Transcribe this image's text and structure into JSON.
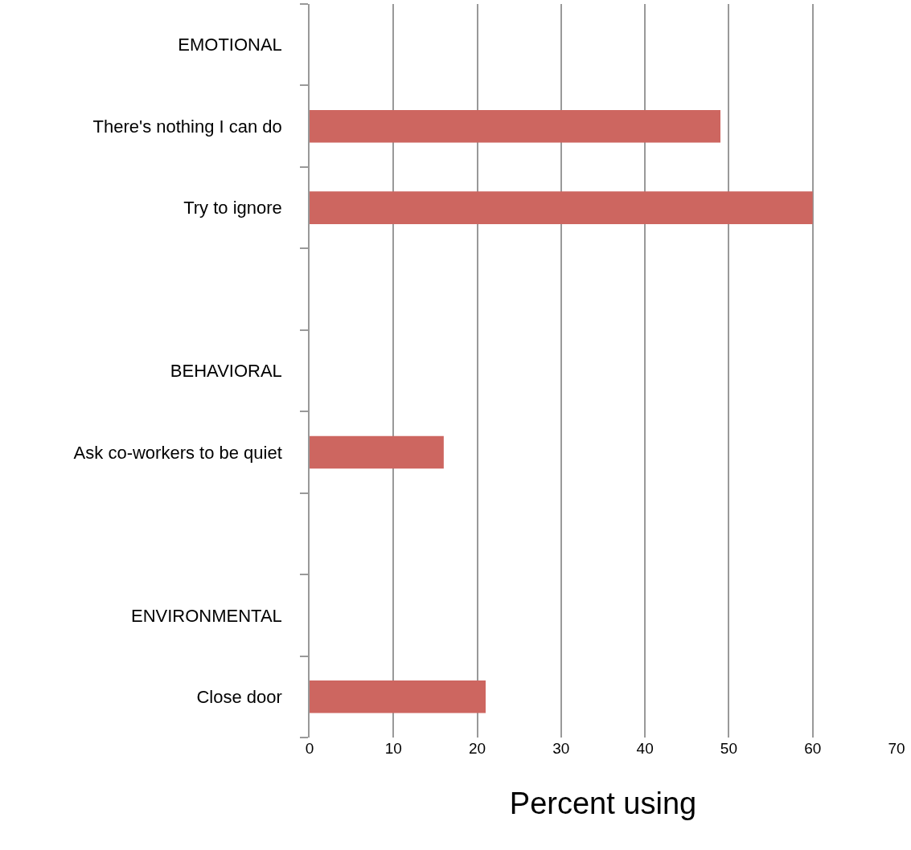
{
  "chart_data": {
    "type": "bar",
    "orientation": "horizontal",
    "xlabel": "Percent using",
    "categories": [
      "EMOTIONAL",
      "There's nothing I can do",
      "Try to ignore",
      null,
      "BEHAVIORAL",
      "Ask co-workers to be quiet",
      null,
      "ENVIRONMENTAL",
      "Close door"
    ],
    "values": [
      null,
      49,
      60,
      null,
      null,
      16,
      null,
      null,
      21
    ],
    "color": "#cd6660",
    "xlim": [
      0,
      70
    ],
    "xticks": [
      0,
      10,
      20,
      30,
      40,
      50,
      60,
      70
    ],
    "grid": "x",
    "legend": false
  }
}
